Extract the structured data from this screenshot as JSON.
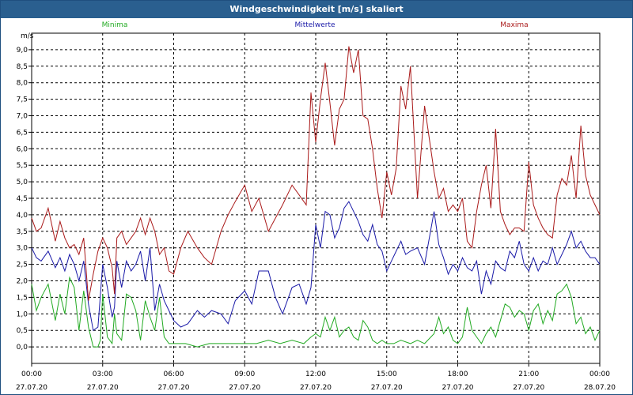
{
  "window": {
    "title": "Windgeschwindigkeit [m/s] skaliert"
  },
  "chart_data": {
    "type": "line",
    "ylabel": "m/s",
    "ylim": [
      -0.5,
      9.5
    ],
    "yticks": [
      "0,0",
      "0,5",
      "1,0",
      "1,5",
      "2,0",
      "2,5",
      "3,0",
      "3,5",
      "4,0",
      "4,5",
      "5,0",
      "5,5",
      "6,0",
      "6,5",
      "7,0",
      "7,5",
      "8,0",
      "8,5",
      "9,0"
    ],
    "xticks": [
      {
        "time": "00:00",
        "date": "27.07.20"
      },
      {
        "time": "03:00",
        "date": "27.07.20"
      },
      {
        "time": "06:00",
        "date": "27.07.20"
      },
      {
        "time": "09:00",
        "date": "27.07.20"
      },
      {
        "time": "12:00",
        "date": "27.07.20"
      },
      {
        "time": "15:00",
        "date": "27.07.20"
      },
      {
        "time": "18:00",
        "date": "27.07.20"
      },
      {
        "time": "21:00",
        "date": "27.07.20"
      },
      {
        "time": "00:00",
        "date": "28.07.20"
      }
    ],
    "xlim_hours": [
      0,
      24
    ],
    "grid": true,
    "series": [
      {
        "name": "Minima",
        "color": "#22aa22",
        "hours": [
          0,
          0.2,
          0.4,
          0.7,
          1.0,
          1.2,
          1.4,
          1.6,
          1.8,
          2.0,
          2.2,
          2.4,
          2.6,
          2.8,
          2.9,
          3.0,
          3.2,
          3.4,
          3.5,
          3.6,
          3.8,
          4.0,
          4.2,
          4.4,
          4.6,
          4.8,
          5.0,
          5.2,
          5.4,
          5.6,
          5.7,
          5.8,
          6.0,
          6.5,
          7.0,
          7.5,
          8.0,
          8.5,
          9.0,
          9.5,
          10.0,
          10.5,
          11.0,
          11.5,
          11.8,
          12.0,
          12.2,
          12.4,
          12.6,
          12.8,
          13.0,
          13.2,
          13.4,
          13.6,
          13.8,
          14.0,
          14.2,
          14.4,
          14.6,
          14.8,
          15.0,
          15.3,
          15.6,
          16.0,
          16.3,
          16.6,
          17.0,
          17.2,
          17.4,
          17.6,
          17.8,
          18.0,
          18.2,
          18.4,
          18.6,
          18.8,
          19.0,
          19.2,
          19.4,
          19.6,
          19.8,
          20.0,
          20.2,
          20.4,
          20.6,
          20.8,
          21.0,
          21.2,
          21.4,
          21.6,
          21.8,
          22.0,
          22.2,
          22.4,
          22.6,
          22.8,
          23.0,
          23.2,
          23.4,
          23.6,
          23.8,
          24.0
        ],
        "values": [
          1.9,
          1.1,
          1.5,
          1.9,
          0.8,
          1.6,
          1.0,
          2.1,
          1.8,
          0.5,
          1.7,
          0.6,
          0.0,
          0.0,
          0.2,
          1.6,
          0.3,
          0.1,
          1.0,
          0.4,
          0.2,
          1.6,
          1.5,
          1.1,
          0.2,
          1.4,
          0.9,
          0.5,
          1.5,
          0.3,
          0.2,
          0.1,
          0.1,
          0.1,
          0.0,
          0.1,
          0.1,
          0.1,
          0.1,
          0.1,
          0.2,
          0.1,
          0.2,
          0.1,
          0.3,
          0.4,
          0.3,
          0.9,
          0.5,
          0.9,
          0.3,
          0.5,
          0.6,
          0.3,
          0.2,
          0.8,
          0.6,
          0.2,
          0.1,
          0.2,
          0.1,
          0.1,
          0.2,
          0.1,
          0.2,
          0.1,
          0.4,
          0.9,
          0.4,
          0.6,
          0.2,
          0.1,
          0.3,
          1.2,
          0.5,
          0.3,
          0.1,
          0.4,
          0.6,
          0.3,
          0.8,
          1.3,
          1.2,
          0.9,
          1.1,
          1.0,
          0.5,
          1.1,
          1.3,
          0.7,
          1.1,
          0.8,
          1.6,
          1.7,
          1.9,
          1.5,
          0.7,
          0.9,
          0.4,
          0.6,
          0.2,
          0.5
        ]
      },
      {
        "name": "Mittelwerte",
        "color": "#1a1aa8",
        "hours": [
          0,
          0.2,
          0.4,
          0.7,
          1.0,
          1.2,
          1.4,
          1.6,
          1.8,
          2.0,
          2.2,
          2.4,
          2.6,
          2.8,
          3.0,
          3.2,
          3.4,
          3.5,
          3.6,
          3.8,
          4.0,
          4.2,
          4.4,
          4.6,
          4.8,
          5.0,
          5.2,
          5.4,
          5.6,
          5.8,
          6.0,
          6.3,
          6.6,
          7.0,
          7.3,
          7.6,
          8.0,
          8.3,
          8.6,
          9.0,
          9.3,
          9.6,
          10.0,
          10.3,
          10.6,
          11.0,
          11.3,
          11.6,
          11.8,
          12.0,
          12.2,
          12.4,
          12.6,
          12.8,
          13.0,
          13.2,
          13.4,
          13.6,
          13.8,
          14.0,
          14.2,
          14.4,
          14.6,
          14.8,
          15.0,
          15.2,
          15.4,
          15.6,
          15.8,
          16.0,
          16.3,
          16.6,
          17.0,
          17.2,
          17.4,
          17.6,
          17.8,
          18.0,
          18.2,
          18.4,
          18.6,
          18.8,
          19.0,
          19.2,
          19.4,
          19.6,
          19.8,
          20.0,
          20.2,
          20.4,
          20.6,
          20.8,
          21.0,
          21.2,
          21.4,
          21.6,
          21.8,
          22.0,
          22.2,
          22.4,
          22.6,
          22.8,
          23.0,
          23.2,
          23.4,
          23.6,
          23.8,
          24.0
        ],
        "values": [
          3.0,
          2.7,
          2.6,
          2.9,
          2.4,
          2.7,
          2.3,
          2.8,
          2.5,
          2.0,
          2.6,
          1.3,
          0.5,
          0.6,
          2.5,
          1.8,
          0.9,
          1.2,
          2.6,
          1.8,
          2.6,
          2.3,
          2.5,
          2.9,
          2.0,
          3.0,
          1.1,
          1.9,
          1.4,
          1.1,
          0.8,
          0.6,
          0.7,
          1.1,
          0.9,
          1.1,
          1.0,
          0.7,
          1.4,
          1.7,
          1.3,
          2.3,
          2.3,
          1.5,
          1.0,
          1.8,
          1.9,
          1.3,
          1.8,
          3.7,
          3.0,
          4.1,
          4.0,
          3.3,
          3.6,
          4.2,
          4.4,
          4.1,
          3.8,
          3.4,
          3.2,
          3.7,
          3.1,
          2.9,
          2.3,
          2.6,
          2.9,
          3.2,
          2.8,
          2.9,
          3.0,
          2.5,
          4.1,
          3.1,
          2.7,
          2.2,
          2.5,
          2.3,
          2.7,
          2.4,
          2.3,
          2.6,
          1.6,
          2.3,
          1.9,
          2.6,
          2.4,
          2.3,
          2.9,
          2.7,
          3.2,
          2.5,
          2.3,
          2.7,
          2.3,
          2.6,
          2.5,
          3.0,
          2.5,
          2.8,
          3.1,
          3.5,
          3.0,
          3.2,
          2.9,
          2.7,
          2.7,
          2.5
        ]
      },
      {
        "name": "Maxima",
        "color": "#aa1a1a",
        "hours": [
          0,
          0.2,
          0.4,
          0.7,
          1.0,
          1.2,
          1.4,
          1.6,
          1.8,
          2.0,
          2.2,
          2.4,
          2.6,
          2.8,
          3.0,
          3.2,
          3.4,
          3.5,
          3.6,
          3.8,
          4.0,
          4.2,
          4.4,
          4.6,
          4.8,
          5.0,
          5.2,
          5.4,
          5.6,
          5.8,
          6.0,
          6.3,
          6.6,
          7.0,
          7.3,
          7.6,
          8.0,
          8.3,
          8.6,
          9.0,
          9.3,
          9.6,
          10.0,
          10.3,
          10.6,
          11.0,
          11.3,
          11.6,
          11.8,
          12.0,
          12.2,
          12.4,
          12.6,
          12.8,
          13.0,
          13.2,
          13.4,
          13.6,
          13.8,
          14.0,
          14.2,
          14.4,
          14.6,
          14.8,
          15.0,
          15.2,
          15.4,
          15.6,
          15.8,
          16.0,
          16.3,
          16.6,
          17.0,
          17.2,
          17.4,
          17.6,
          17.8,
          18.0,
          18.2,
          18.4,
          18.6,
          18.8,
          19.0,
          19.2,
          19.4,
          19.6,
          19.8,
          20.0,
          20.2,
          20.4,
          20.6,
          20.8,
          21.0,
          21.2,
          21.4,
          21.6,
          21.8,
          22.0,
          22.2,
          22.4,
          22.6,
          22.8,
          23.0,
          23.2,
          23.4,
          23.6,
          23.8,
          24.0
        ],
        "values": [
          3.9,
          3.5,
          3.6,
          4.2,
          3.2,
          3.8,
          3.3,
          3.0,
          3.1,
          2.8,
          3.3,
          1.4,
          2.2,
          2.9,
          3.3,
          3.0,
          2.4,
          1.6,
          3.3,
          3.5,
          3.1,
          3.3,
          3.5,
          3.9,
          3.4,
          3.9,
          3.5,
          2.8,
          3.0,
          2.3,
          2.2,
          3.0,
          3.5,
          3.0,
          2.7,
          2.5,
          3.5,
          4.0,
          4.4,
          4.9,
          4.1,
          4.5,
          3.5,
          3.9,
          4.3,
          4.9,
          4.6,
          4.3,
          7.7,
          6.2,
          7.5,
          8.6,
          7.4,
          6.1,
          7.2,
          7.5,
          9.1,
          8.3,
          9.0,
          7.0,
          6.9,
          6.0,
          4.8,
          3.9,
          5.3,
          4.6,
          5.4,
          7.9,
          7.2,
          8.5,
          4.5,
          7.3,
          5.3,
          4.5,
          4.8,
          4.1,
          4.3,
          4.1,
          4.5,
          3.2,
          3.0,
          4.1,
          4.9,
          5.5,
          4.2,
          6.6,
          4.1,
          3.7,
          3.4,
          3.6,
          3.6,
          3.5,
          5.6,
          4.3,
          3.9,
          3.6,
          3.4,
          3.3,
          4.6,
          5.1,
          4.9,
          5.8,
          4.5,
          6.7,
          5.2,
          4.6,
          4.3,
          4.0
        ]
      }
    ]
  }
}
